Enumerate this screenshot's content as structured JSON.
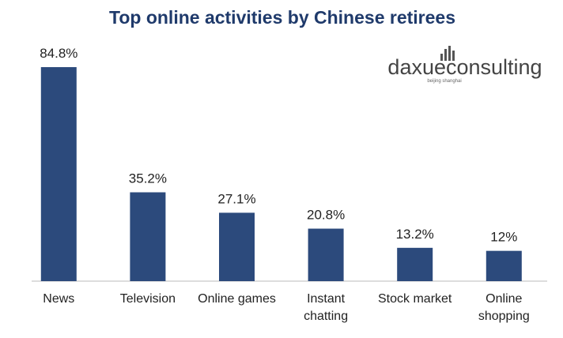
{
  "chart_data": {
    "type": "bar",
    "title": "Top online activities by Chinese retirees",
    "categories": [
      "News",
      "Television",
      "Online games",
      "Instant\nchatting",
      "Stock market",
      "Online\nshopping"
    ],
    "values": [
      84.8,
      35.2,
      27.1,
      20.8,
      13.2,
      12
    ],
    "value_labels": [
      "84.8%",
      "35.2%",
      "27.1%",
      "20.8%",
      "13.2%",
      "12%"
    ],
    "color": "#2c4a7c"
  },
  "logo": {
    "name": "daxueconsulting",
    "tagline": "beijing shanghai"
  }
}
